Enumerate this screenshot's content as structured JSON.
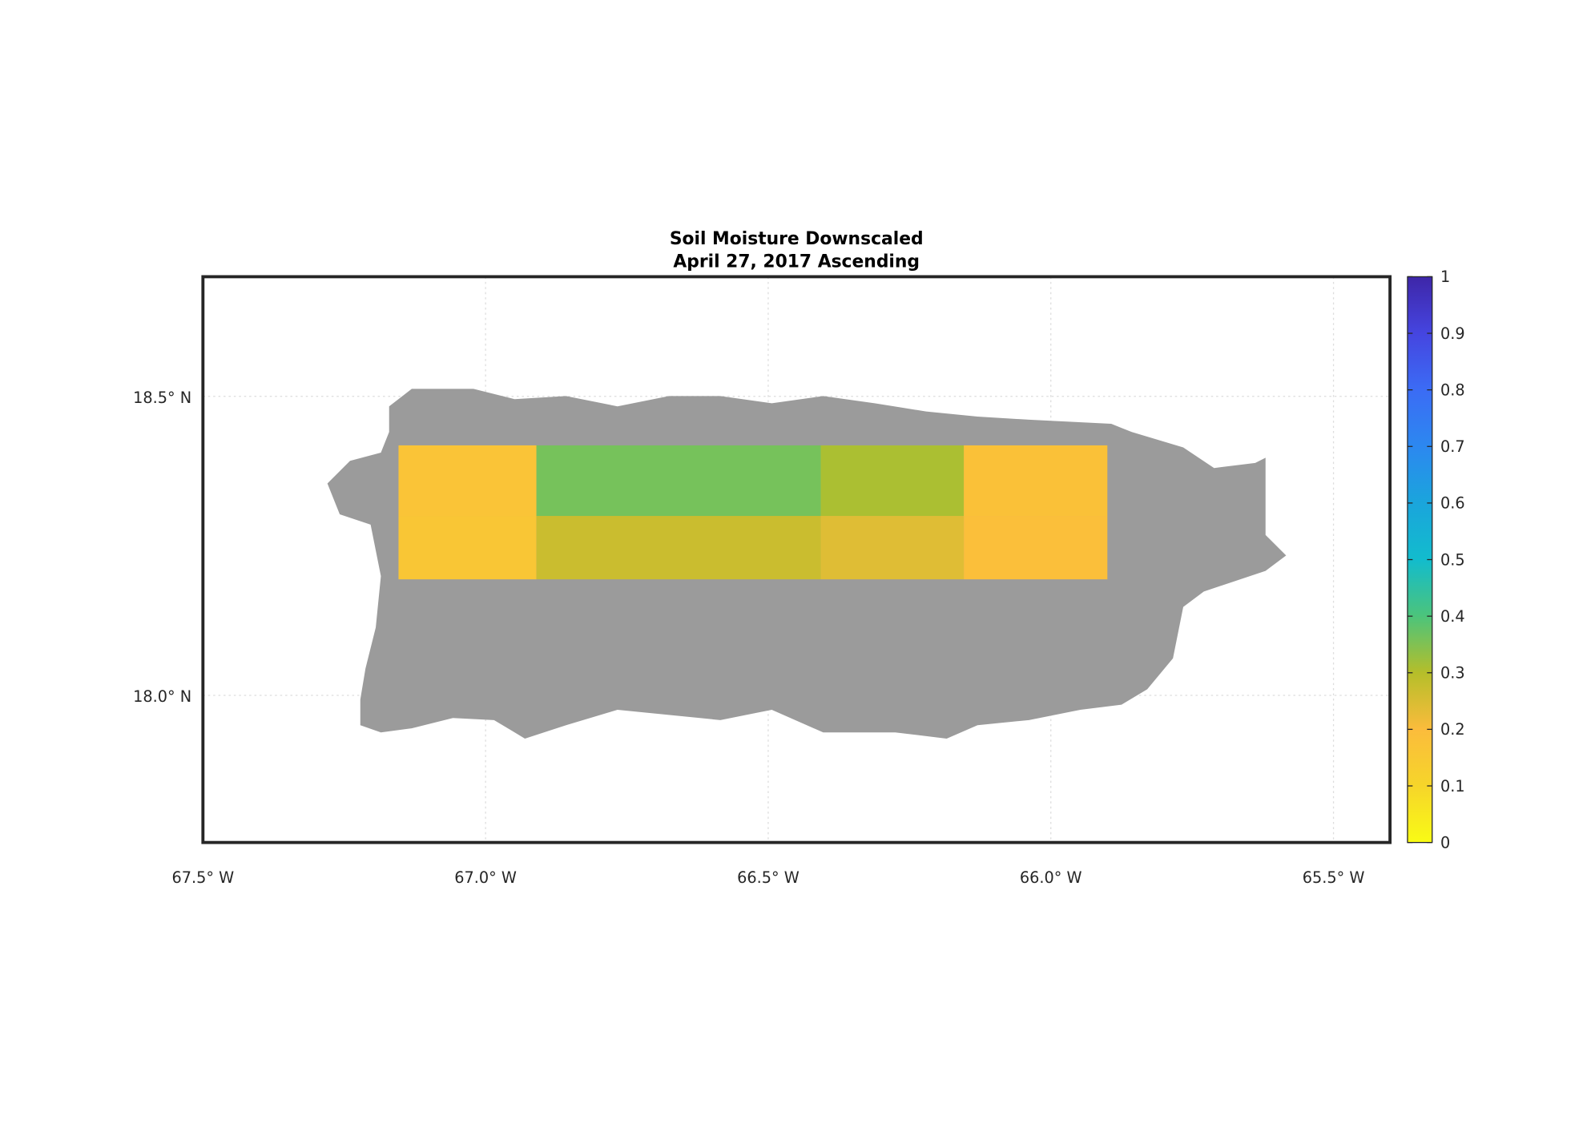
{
  "chart_data": {
    "type": "map",
    "title": "Soil Moisture Downscaled",
    "subtitle": "April 27, 2017 Ascending",
    "xlim": [
      -67.5,
      -65.4
    ],
    "ylim": [
      17.754,
      18.7
    ],
    "xticks": [
      {
        "value": -67.5,
        "label": "67.5° W"
      },
      {
        "value": -67.0,
        "label": "67.0° W"
      },
      {
        "value": -66.5,
        "label": "66.5° W"
      },
      {
        "value": -66.0,
        "label": "66.0° W"
      },
      {
        "value": -65.5,
        "label": "65.5° W"
      }
    ],
    "yticks": [
      {
        "value": 18.0,
        "label": "18.0° N"
      },
      {
        "value": 18.5,
        "label": "18.5° N"
      }
    ],
    "grid": true,
    "land_color": "#9b9b9b",
    "clim": [
      0,
      1
    ],
    "cticks": [
      0,
      0.1,
      0.2,
      0.3,
      0.4,
      0.5,
      0.6,
      0.7,
      0.8,
      0.9,
      1
    ],
    "colormap": [
      "#f9fb15",
      "#f6d52a",
      "#fbbc3c",
      "#b5be2a",
      "#4cc47b",
      "#12bccd",
      "#1aa5dc",
      "#2c88f0",
      "#3b6cf5",
      "#4545e0",
      "#3e26a8"
    ],
    "lon_edges": [
      -67.154,
      -66.91,
      -66.407,
      -66.154,
      -65.9
    ],
    "lat_edges": [
      18.418,
      18.3,
      18.194
    ],
    "values": [
      [
        0.17,
        0.36,
        0.31,
        0.18
      ],
      [
        0.16,
        0.27,
        0.24,
        0.19
      ]
    ]
  }
}
